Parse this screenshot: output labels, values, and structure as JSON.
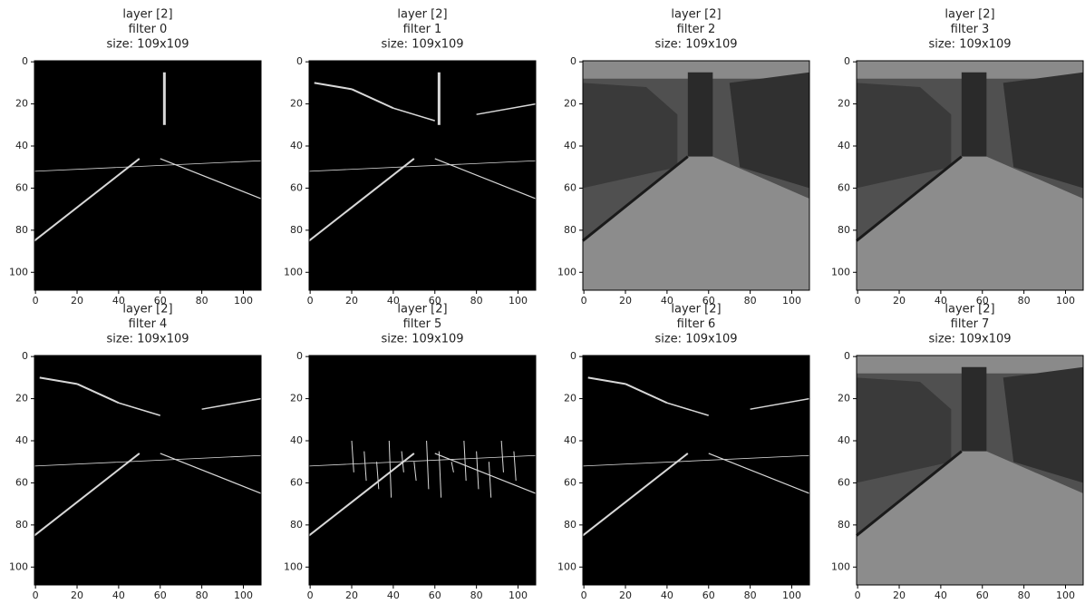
{
  "chart_data": [
    {
      "type": "image",
      "title": [
        "layer [2]",
        "filter 0",
        "size: 109x109"
      ],
      "xlim": [
        -0.5,
        108.5
      ],
      "ylim": [
        108.5,
        -0.5
      ],
      "xticks": [
        0,
        20,
        40,
        60,
        80,
        100
      ],
      "yticks": [
        0,
        20,
        40,
        60,
        80,
        100
      ]
    },
    {
      "type": "image",
      "title": [
        "layer [2]",
        "filter 1",
        "size: 109x109"
      ],
      "xlim": [
        -0.5,
        108.5
      ],
      "ylim": [
        108.5,
        -0.5
      ],
      "xticks": [
        0,
        20,
        40,
        60,
        80,
        100
      ],
      "yticks": [
        0,
        20,
        40,
        60,
        80,
        100
      ]
    },
    {
      "type": "image",
      "title": [
        "layer [2]",
        "filter 2",
        "size: 109x109"
      ],
      "xlim": [
        -0.5,
        108.5
      ],
      "ylim": [
        108.5,
        -0.5
      ],
      "xticks": [
        0,
        20,
        40,
        60,
        80,
        100
      ],
      "yticks": [
        0,
        20,
        40,
        60,
        80,
        100
      ]
    },
    {
      "type": "image",
      "title": [
        "layer [2]",
        "filter 3",
        "size: 109x109"
      ],
      "xlim": [
        -0.5,
        108.5
      ],
      "ylim": [
        108.5,
        -0.5
      ],
      "xticks": [
        0,
        20,
        40,
        60,
        80,
        100
      ],
      "yticks": [
        0,
        20,
        40,
        60,
        80,
        100
      ]
    },
    {
      "type": "image",
      "title": [
        "layer [2]",
        "filter 4",
        "size: 109x109"
      ],
      "xlim": [
        -0.5,
        108.5
      ],
      "ylim": [
        108.5,
        -0.5
      ],
      "xticks": [
        0,
        20,
        40,
        60,
        80,
        100
      ],
      "yticks": [
        0,
        20,
        40,
        60,
        80,
        100
      ]
    },
    {
      "type": "image",
      "title": [
        "layer [2]",
        "filter 5",
        "size: 109x109"
      ],
      "xlim": [
        -0.5,
        108.5
      ],
      "ylim": [
        108.5,
        -0.5
      ],
      "xticks": [
        0,
        20,
        40,
        60,
        80,
        100
      ],
      "yticks": [
        0,
        20,
        40,
        60,
        80,
        100
      ]
    },
    {
      "type": "image",
      "title": [
        "layer [2]",
        "filter 6",
        "size: 109x109"
      ],
      "xlim": [
        -0.5,
        108.5
      ],
      "ylim": [
        108.5,
        -0.5
      ],
      "xticks": [
        0,
        20,
        40,
        60,
        80,
        100
      ],
      "yticks": [
        0,
        20,
        40,
        60,
        80,
        100
      ]
    },
    {
      "type": "image",
      "title": [
        "layer [2]",
        "filter 7",
        "size: 109x109"
      ],
      "xlim": [
        -0.5,
        108.5
      ],
      "ylim": [
        108.5,
        -0.5
      ],
      "xticks": [
        0,
        20,
        40,
        60,
        80,
        100
      ],
      "yticks": [
        0,
        20,
        40,
        60,
        80,
        100
      ]
    }
  ]
}
